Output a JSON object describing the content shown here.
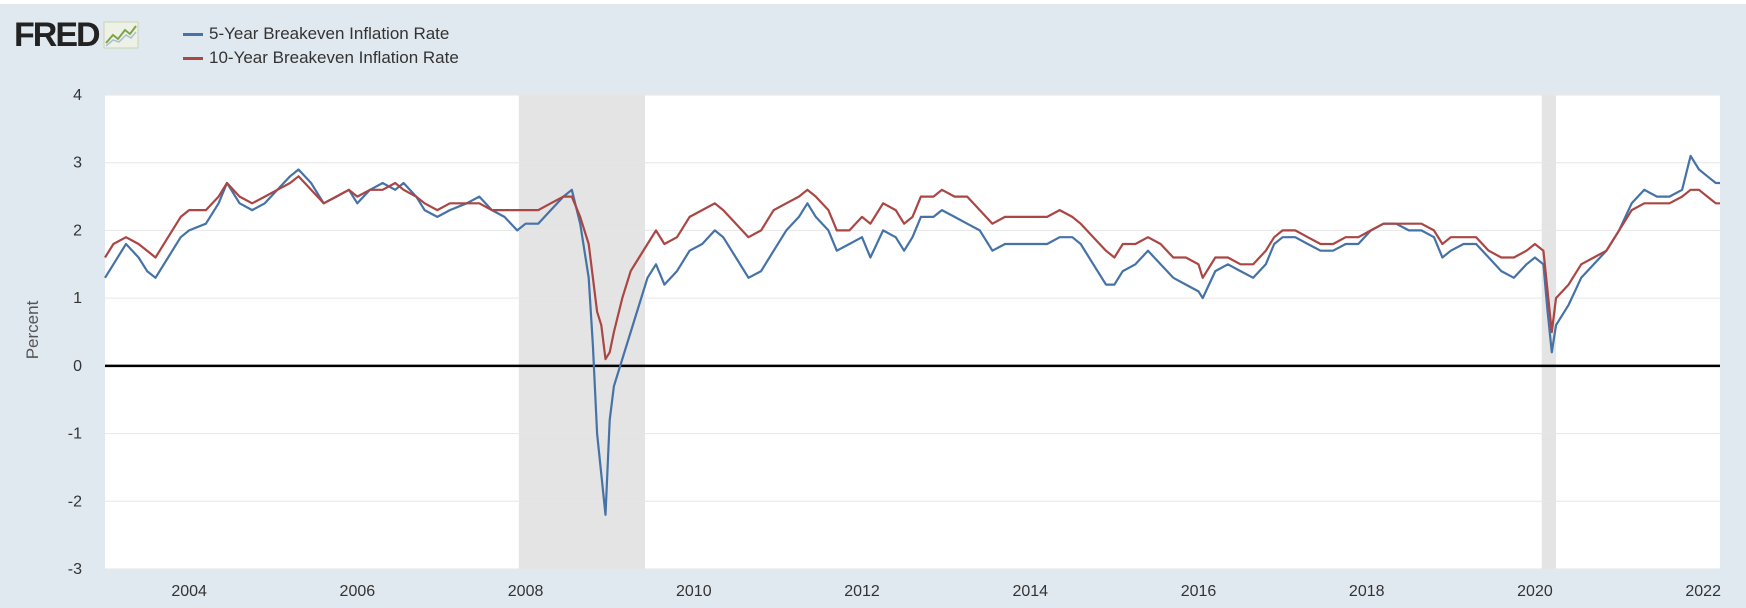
{
  "header": {
    "logo_text": "FRED"
  },
  "chart_data": {
    "type": "line",
    "xlabel": "",
    "ylabel": "Percent",
    "xlim": [
      2003.0,
      2022.2
    ],
    "ylim": [
      -3,
      4
    ],
    "x_ticks": [
      2004,
      2006,
      2008,
      2010,
      2012,
      2014,
      2016,
      2018,
      2020,
      2022
    ],
    "y_ticks": [
      4,
      3,
      2,
      1,
      0,
      -1,
      -2,
      -3
    ],
    "grid": true,
    "legend_position": "top-left",
    "recessions": [
      {
        "start": 2007.92,
        "end": 2009.42
      },
      {
        "start": 2020.08,
        "end": 2020.25
      }
    ],
    "colors": {
      "five_year": "#4572a7",
      "ten_year": "#aa4643",
      "recession": "#e4e4e4",
      "zero_line": "#000000",
      "grid": "#e6e6e6",
      "background": "#e1e9f0"
    },
    "series": [
      {
        "name": "5-Year Breakeven Inflation Rate",
        "color": "#4572a7",
        "points": [
          [
            2003.0,
            1.3
          ],
          [
            2003.1,
            1.5
          ],
          [
            2003.25,
            1.8
          ],
          [
            2003.4,
            1.6
          ],
          [
            2003.5,
            1.4
          ],
          [
            2003.6,
            1.3
          ],
          [
            2003.75,
            1.6
          ],
          [
            2003.9,
            1.9
          ],
          [
            2004.0,
            2.0
          ],
          [
            2004.2,
            2.1
          ],
          [
            2004.35,
            2.4
          ],
          [
            2004.45,
            2.7
          ],
          [
            2004.6,
            2.4
          ],
          [
            2004.75,
            2.3
          ],
          [
            2004.9,
            2.4
          ],
          [
            2005.05,
            2.6
          ],
          [
            2005.2,
            2.8
          ],
          [
            2005.3,
            2.9
          ],
          [
            2005.45,
            2.7
          ],
          [
            2005.6,
            2.4
          ],
          [
            2005.75,
            2.5
          ],
          [
            2005.9,
            2.6
          ],
          [
            2006.0,
            2.4
          ],
          [
            2006.15,
            2.6
          ],
          [
            2006.3,
            2.7
          ],
          [
            2006.45,
            2.6
          ],
          [
            2006.55,
            2.7
          ],
          [
            2006.7,
            2.5
          ],
          [
            2006.8,
            2.3
          ],
          [
            2006.95,
            2.2
          ],
          [
            2007.1,
            2.3
          ],
          [
            2007.3,
            2.4
          ],
          [
            2007.45,
            2.5
          ],
          [
            2007.6,
            2.3
          ],
          [
            2007.75,
            2.2
          ],
          [
            2007.9,
            2.0
          ],
          [
            2008.0,
            2.1
          ],
          [
            2008.15,
            2.1
          ],
          [
            2008.3,
            2.3
          ],
          [
            2008.45,
            2.5
          ],
          [
            2008.55,
            2.6
          ],
          [
            2008.65,
            2.1
          ],
          [
            2008.75,
            1.3
          ],
          [
            2008.8,
            0.3
          ],
          [
            2008.85,
            -1.0
          ],
          [
            2008.9,
            -1.6
          ],
          [
            2008.95,
            -2.2
          ],
          [
            2009.0,
            -0.8
          ],
          [
            2009.05,
            -0.3
          ],
          [
            2009.15,
            0.1
          ],
          [
            2009.25,
            0.5
          ],
          [
            2009.35,
            0.9
          ],
          [
            2009.45,
            1.3
          ],
          [
            2009.55,
            1.5
          ],
          [
            2009.65,
            1.2
          ],
          [
            2009.8,
            1.4
          ],
          [
            2009.95,
            1.7
          ],
          [
            2010.1,
            1.8
          ],
          [
            2010.25,
            2.0
          ],
          [
            2010.35,
            1.9
          ],
          [
            2010.5,
            1.6
          ],
          [
            2010.65,
            1.3
          ],
          [
            2010.8,
            1.4
          ],
          [
            2010.95,
            1.7
          ],
          [
            2011.1,
            2.0
          ],
          [
            2011.25,
            2.2
          ],
          [
            2011.35,
            2.4
          ],
          [
            2011.45,
            2.2
          ],
          [
            2011.6,
            2.0
          ],
          [
            2011.7,
            1.7
          ],
          [
            2011.85,
            1.8
          ],
          [
            2012.0,
            1.9
          ],
          [
            2012.1,
            1.6
          ],
          [
            2012.25,
            2.0
          ],
          [
            2012.4,
            1.9
          ],
          [
            2012.5,
            1.7
          ],
          [
            2012.6,
            1.9
          ],
          [
            2012.7,
            2.2
          ],
          [
            2012.85,
            2.2
          ],
          [
            2012.95,
            2.3
          ],
          [
            2013.1,
            2.2
          ],
          [
            2013.25,
            2.1
          ],
          [
            2013.4,
            2.0
          ],
          [
            2013.55,
            1.7
          ],
          [
            2013.7,
            1.8
          ],
          [
            2013.85,
            1.8
          ],
          [
            2014.0,
            1.8
          ],
          [
            2014.2,
            1.8
          ],
          [
            2014.35,
            1.9
          ],
          [
            2014.5,
            1.9
          ],
          [
            2014.6,
            1.8
          ],
          [
            2014.75,
            1.5
          ],
          [
            2014.9,
            1.2
          ],
          [
            2015.0,
            1.2
          ],
          [
            2015.1,
            1.4
          ],
          [
            2015.25,
            1.5
          ],
          [
            2015.4,
            1.7
          ],
          [
            2015.55,
            1.5
          ],
          [
            2015.7,
            1.3
          ],
          [
            2015.85,
            1.2
          ],
          [
            2016.0,
            1.1
          ],
          [
            2016.05,
            1.0
          ],
          [
            2016.2,
            1.4
          ],
          [
            2016.35,
            1.5
          ],
          [
            2016.5,
            1.4
          ],
          [
            2016.65,
            1.3
          ],
          [
            2016.8,
            1.5
          ],
          [
            2016.9,
            1.8
          ],
          [
            2017.0,
            1.9
          ],
          [
            2017.15,
            1.9
          ],
          [
            2017.3,
            1.8
          ],
          [
            2017.45,
            1.7
          ],
          [
            2017.6,
            1.7
          ],
          [
            2017.75,
            1.8
          ],
          [
            2017.9,
            1.8
          ],
          [
            2018.05,
            2.0
          ],
          [
            2018.2,
            2.1
          ],
          [
            2018.35,
            2.1
          ],
          [
            2018.5,
            2.0
          ],
          [
            2018.65,
            2.0
          ],
          [
            2018.8,
            1.9
          ],
          [
            2018.9,
            1.6
          ],
          [
            2019.0,
            1.7
          ],
          [
            2019.15,
            1.8
          ],
          [
            2019.3,
            1.8
          ],
          [
            2019.45,
            1.6
          ],
          [
            2019.6,
            1.4
          ],
          [
            2019.75,
            1.3
          ],
          [
            2019.9,
            1.5
          ],
          [
            2020.0,
            1.6
          ],
          [
            2020.1,
            1.5
          ],
          [
            2020.15,
            0.8
          ],
          [
            2020.2,
            0.2
          ],
          [
            2020.25,
            0.6
          ],
          [
            2020.4,
            0.9
          ],
          [
            2020.55,
            1.3
          ],
          [
            2020.7,
            1.5
          ],
          [
            2020.85,
            1.7
          ],
          [
            2021.0,
            2.0
          ],
          [
            2021.15,
            2.4
          ],
          [
            2021.3,
            2.6
          ],
          [
            2021.45,
            2.5
          ],
          [
            2021.6,
            2.5
          ],
          [
            2021.75,
            2.6
          ],
          [
            2021.85,
            3.1
          ],
          [
            2021.95,
            2.9
          ],
          [
            2022.05,
            2.8
          ],
          [
            2022.15,
            2.7
          ],
          [
            2022.2,
            2.7
          ]
        ]
      },
      {
        "name": "10-Year Breakeven Inflation Rate",
        "color": "#aa4643",
        "points": [
          [
            2003.0,
            1.6
          ],
          [
            2003.1,
            1.8
          ],
          [
            2003.25,
            1.9
          ],
          [
            2003.4,
            1.8
          ],
          [
            2003.5,
            1.7
          ],
          [
            2003.6,
            1.6
          ],
          [
            2003.75,
            1.9
          ],
          [
            2003.9,
            2.2
          ],
          [
            2004.0,
            2.3
          ],
          [
            2004.2,
            2.3
          ],
          [
            2004.35,
            2.5
          ],
          [
            2004.45,
            2.7
          ],
          [
            2004.6,
            2.5
          ],
          [
            2004.75,
            2.4
          ],
          [
            2004.9,
            2.5
          ],
          [
            2005.05,
            2.6
          ],
          [
            2005.2,
            2.7
          ],
          [
            2005.3,
            2.8
          ],
          [
            2005.45,
            2.6
          ],
          [
            2005.6,
            2.4
          ],
          [
            2005.75,
            2.5
          ],
          [
            2005.9,
            2.6
          ],
          [
            2006.0,
            2.5
          ],
          [
            2006.15,
            2.6
          ],
          [
            2006.3,
            2.6
          ],
          [
            2006.45,
            2.7
          ],
          [
            2006.55,
            2.6
          ],
          [
            2006.7,
            2.5
          ],
          [
            2006.8,
            2.4
          ],
          [
            2006.95,
            2.3
          ],
          [
            2007.1,
            2.4
          ],
          [
            2007.3,
            2.4
          ],
          [
            2007.45,
            2.4
          ],
          [
            2007.6,
            2.3
          ],
          [
            2007.75,
            2.3
          ],
          [
            2007.9,
            2.3
          ],
          [
            2008.0,
            2.3
          ],
          [
            2008.15,
            2.3
          ],
          [
            2008.3,
            2.4
          ],
          [
            2008.45,
            2.5
          ],
          [
            2008.55,
            2.5
          ],
          [
            2008.65,
            2.2
          ],
          [
            2008.75,
            1.8
          ],
          [
            2008.8,
            1.3
          ],
          [
            2008.85,
            0.8
          ],
          [
            2008.9,
            0.6
          ],
          [
            2008.95,
            0.1
          ],
          [
            2009.0,
            0.2
          ],
          [
            2009.05,
            0.5
          ],
          [
            2009.15,
            1.0
          ],
          [
            2009.25,
            1.4
          ],
          [
            2009.35,
            1.6
          ],
          [
            2009.45,
            1.8
          ],
          [
            2009.55,
            2.0
          ],
          [
            2009.65,
            1.8
          ],
          [
            2009.8,
            1.9
          ],
          [
            2009.95,
            2.2
          ],
          [
            2010.1,
            2.3
          ],
          [
            2010.25,
            2.4
          ],
          [
            2010.35,
            2.3
          ],
          [
            2010.5,
            2.1
          ],
          [
            2010.65,
            1.9
          ],
          [
            2010.8,
            2.0
          ],
          [
            2010.95,
            2.3
          ],
          [
            2011.1,
            2.4
          ],
          [
            2011.25,
            2.5
          ],
          [
            2011.35,
            2.6
          ],
          [
            2011.45,
            2.5
          ],
          [
            2011.6,
            2.3
          ],
          [
            2011.7,
            2.0
          ],
          [
            2011.85,
            2.0
          ],
          [
            2012.0,
            2.2
          ],
          [
            2012.1,
            2.1
          ],
          [
            2012.25,
            2.4
          ],
          [
            2012.4,
            2.3
          ],
          [
            2012.5,
            2.1
          ],
          [
            2012.6,
            2.2
          ],
          [
            2012.7,
            2.5
          ],
          [
            2012.85,
            2.5
          ],
          [
            2012.95,
            2.6
          ],
          [
            2013.1,
            2.5
          ],
          [
            2013.25,
            2.5
          ],
          [
            2013.4,
            2.3
          ],
          [
            2013.55,
            2.1
          ],
          [
            2013.7,
            2.2
          ],
          [
            2013.85,
            2.2
          ],
          [
            2014.0,
            2.2
          ],
          [
            2014.2,
            2.2
          ],
          [
            2014.35,
            2.3
          ],
          [
            2014.5,
            2.2
          ],
          [
            2014.6,
            2.1
          ],
          [
            2014.75,
            1.9
          ],
          [
            2014.9,
            1.7
          ],
          [
            2015.0,
            1.6
          ],
          [
            2015.1,
            1.8
          ],
          [
            2015.25,
            1.8
          ],
          [
            2015.4,
            1.9
          ],
          [
            2015.55,
            1.8
          ],
          [
            2015.7,
            1.6
          ],
          [
            2015.85,
            1.6
          ],
          [
            2016.0,
            1.5
          ],
          [
            2016.05,
            1.3
          ],
          [
            2016.2,
            1.6
          ],
          [
            2016.35,
            1.6
          ],
          [
            2016.5,
            1.5
          ],
          [
            2016.65,
            1.5
          ],
          [
            2016.8,
            1.7
          ],
          [
            2016.9,
            1.9
          ],
          [
            2017.0,
            2.0
          ],
          [
            2017.15,
            2.0
          ],
          [
            2017.3,
            1.9
          ],
          [
            2017.45,
            1.8
          ],
          [
            2017.6,
            1.8
          ],
          [
            2017.75,
            1.9
          ],
          [
            2017.9,
            1.9
          ],
          [
            2018.05,
            2.0
          ],
          [
            2018.2,
            2.1
          ],
          [
            2018.35,
            2.1
          ],
          [
            2018.5,
            2.1
          ],
          [
            2018.65,
            2.1
          ],
          [
            2018.8,
            2.0
          ],
          [
            2018.9,
            1.8
          ],
          [
            2019.0,
            1.9
          ],
          [
            2019.15,
            1.9
          ],
          [
            2019.3,
            1.9
          ],
          [
            2019.45,
            1.7
          ],
          [
            2019.6,
            1.6
          ],
          [
            2019.75,
            1.6
          ],
          [
            2019.9,
            1.7
          ],
          [
            2020.0,
            1.8
          ],
          [
            2020.1,
            1.7
          ],
          [
            2020.15,
            1.1
          ],
          [
            2020.2,
            0.5
          ],
          [
            2020.25,
            1.0
          ],
          [
            2020.4,
            1.2
          ],
          [
            2020.55,
            1.5
          ],
          [
            2020.7,
            1.6
          ],
          [
            2020.85,
            1.7
          ],
          [
            2021.0,
            2.0
          ],
          [
            2021.15,
            2.3
          ],
          [
            2021.3,
            2.4
          ],
          [
            2021.45,
            2.4
          ],
          [
            2021.6,
            2.4
          ],
          [
            2021.75,
            2.5
          ],
          [
            2021.85,
            2.6
          ],
          [
            2021.95,
            2.6
          ],
          [
            2022.05,
            2.5
          ],
          [
            2022.15,
            2.4
          ],
          [
            2022.2,
            2.4
          ]
        ]
      }
    ]
  }
}
